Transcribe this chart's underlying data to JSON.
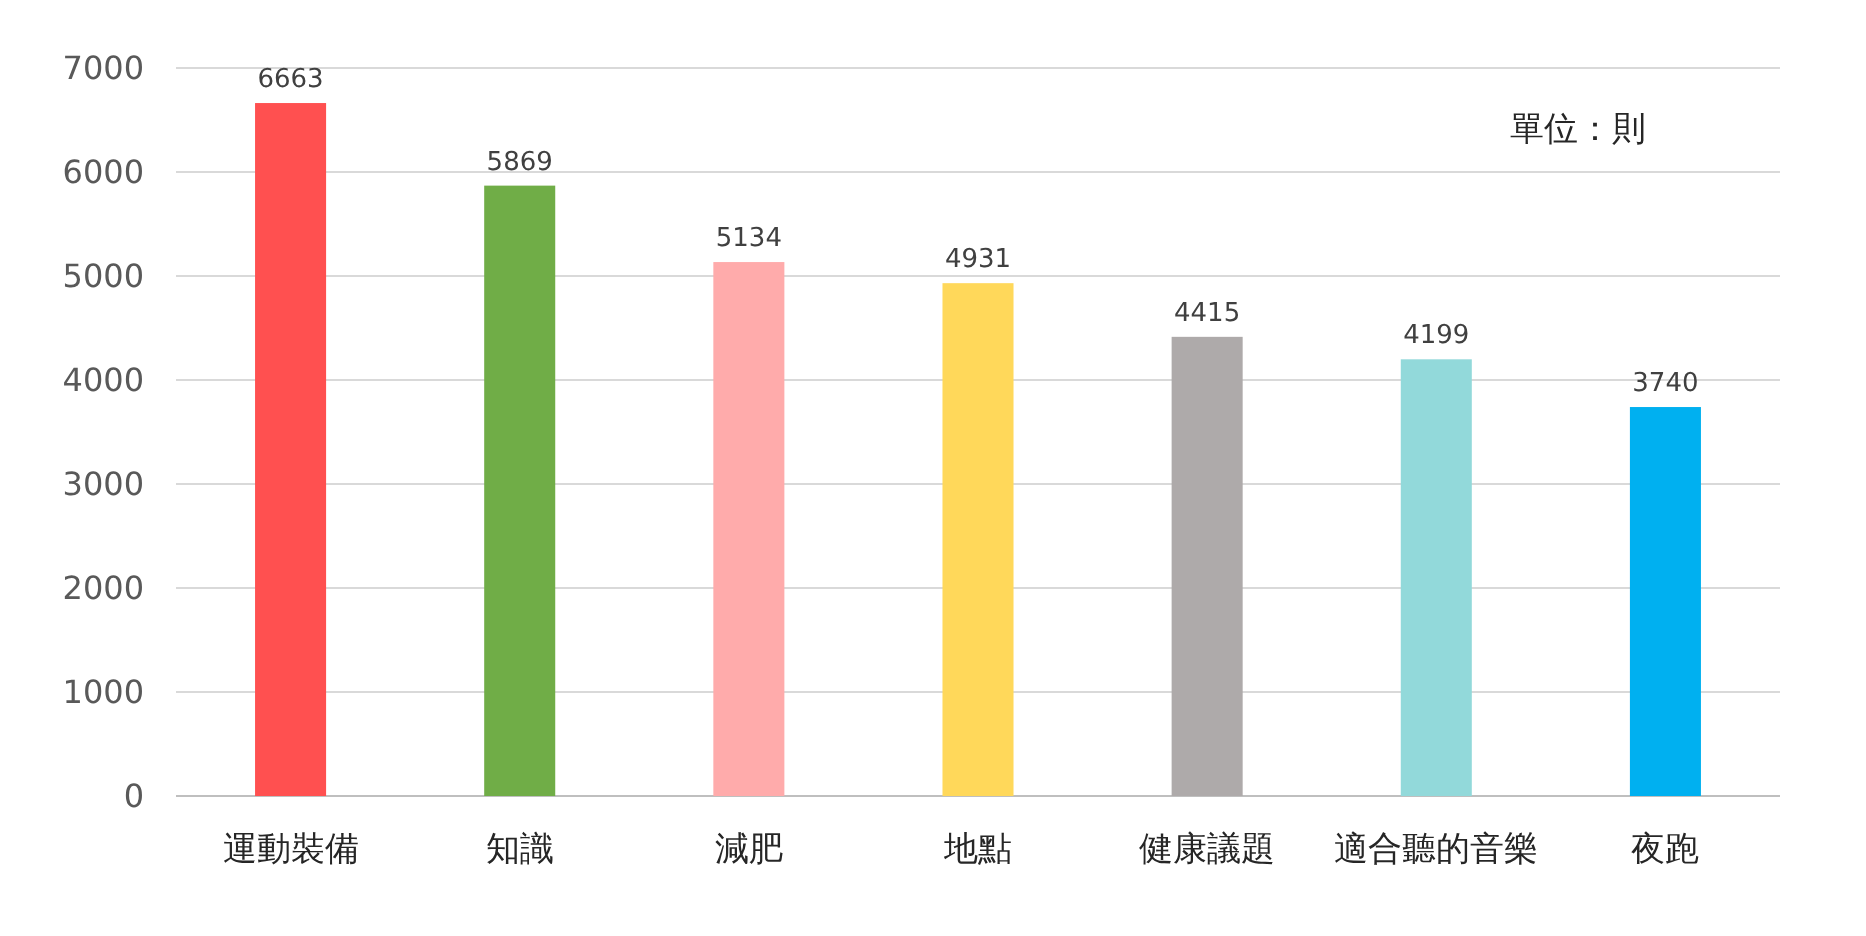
{
  "chart_data": {
    "type": "bar",
    "categories": [
      "運動裝備",
      "知識",
      "減肥",
      "地點",
      "健康議題",
      "適合聽的音樂",
      "夜跑"
    ],
    "values": [
      6663,
      5869,
      5134,
      4931,
      4415,
      4199,
      3740
    ],
    "colors": [
      "#ff5050",
      "#70ad47",
      "#ffabab",
      "#ffd85a",
      "#aeaaaa",
      "#92d9da",
      "#00b0f0"
    ],
    "ylim": [
      0,
      7000
    ],
    "yticks": [
      0,
      1000,
      2000,
      3000,
      4000,
      5000,
      6000,
      7000
    ],
    "grid": "y",
    "data_labels": true,
    "annotations": [
      "單位：則"
    ]
  }
}
